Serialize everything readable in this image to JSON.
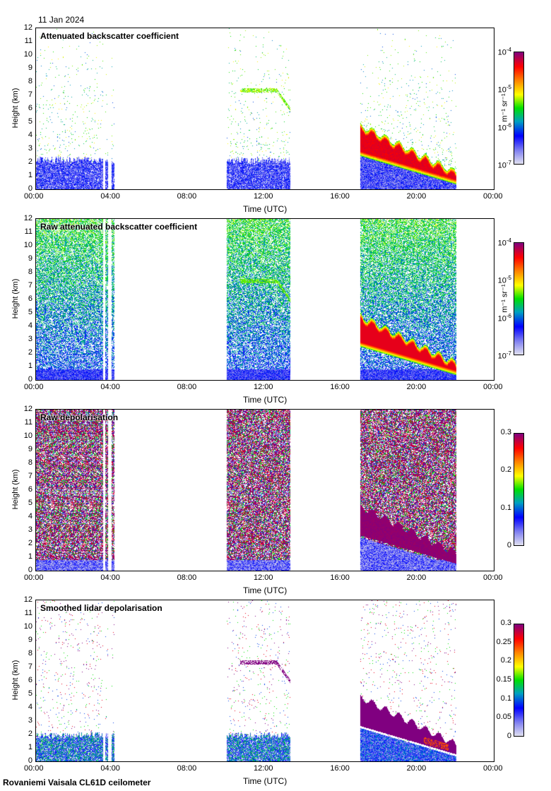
{
  "header": {
    "date": "11 Jan 2024"
  },
  "footer": {
    "station": "Rovaniemi Vaisala CL61D ceilometer"
  },
  "colors": {
    "colormap": [
      "#e0e0f0",
      "#8080f0",
      "#0000ff",
      "#00a0c0",
      "#00e000",
      "#ffff00",
      "#ff8000",
      "#ff0000",
      "#800080"
    ]
  },
  "chart_data": [
    {
      "type": "heatmap",
      "title": "Attenuated backscatter coefficient",
      "mode": "att",
      "xlabel": "Time (UTC)",
      "ylabel": "Height (km)",
      "xlim": [
        0,
        24
      ],
      "ylim": [
        0,
        12
      ],
      "xticks": [
        "00:00",
        "04:00",
        "08:00",
        "12:00",
        "16:00",
        "20:00",
        "00:00"
      ],
      "yticks": [
        "0",
        "1",
        "2",
        "3",
        "4",
        "5",
        "6",
        "7",
        "8",
        "9",
        "10",
        "11",
        "12"
      ],
      "colorbar": {
        "scale": "log",
        "range": [
          1e-07,
          0.0001
        ],
        "ticks": [
          {
            "base": "10",
            "exp": "-4"
          },
          {
            "base": "10",
            "exp": "-5"
          },
          {
            "base": "10",
            "exp": "-6"
          },
          {
            "base": "10",
            "exp": "-7"
          }
        ],
        "unit": "m⁻¹ sr⁻¹"
      },
      "data_segments_hours": [
        [
          0,
          3.5
        ],
        [
          3.6,
          3.75
        ],
        [
          3.95,
          4.1
        ],
        [
          10.0,
          13.3
        ],
        [
          17.0,
          22.0
        ]
      ],
      "features": {
        "boundary_layer_top_km": 2.2,
        "cloud_layer": {
          "time_hours": [
            10.7,
            13.3
          ],
          "height_km": [
            7.4,
            6.0
          ]
        },
        "descending_layer": {
          "time_hours": [
            17,
            22
          ],
          "top_km": [
            4.8,
            1.3
          ],
          "base_km": [
            2.5,
            0.4
          ]
        }
      }
    },
    {
      "type": "heatmap",
      "title": "Raw attenuated backscatter coefficient",
      "mode": "raw",
      "xlabel": "Time (UTC)",
      "ylabel": "Height (km)",
      "xlim": [
        0,
        24
      ],
      "ylim": [
        0,
        12
      ],
      "xticks": [
        "00:00",
        "04:00",
        "08:00",
        "12:00",
        "16:00",
        "20:00",
        "00:00"
      ],
      "yticks": [
        "0",
        "1",
        "2",
        "3",
        "4",
        "5",
        "6",
        "7",
        "8",
        "9",
        "10",
        "11",
        "12"
      ],
      "colorbar": {
        "scale": "log",
        "range": [
          1e-07,
          0.0001
        ],
        "ticks": [
          {
            "base": "10",
            "exp": "-4"
          },
          {
            "base": "10",
            "exp": "-5"
          },
          {
            "base": "10",
            "exp": "-6"
          },
          {
            "base": "10",
            "exp": "-7"
          }
        ],
        "unit": "m⁻¹ sr⁻¹"
      },
      "data_segments_hours": [
        [
          0,
          3.5
        ],
        [
          3.6,
          3.75
        ],
        [
          3.95,
          4.1
        ],
        [
          10.0,
          13.3
        ],
        [
          17.0,
          22.0
        ]
      ],
      "features": {
        "boundary_layer_top_km": 2.2,
        "cloud_layer": {
          "time_hours": [
            10.7,
            13.3
          ],
          "height_km": [
            7.4,
            6.0
          ]
        },
        "descending_layer": {
          "time_hours": [
            17,
            22
          ],
          "top_km": [
            4.8,
            1.3
          ],
          "base_km": [
            2.5,
            0.4
          ]
        }
      }
    },
    {
      "type": "heatmap",
      "title": "Raw depolarisation",
      "mode": "rawdep",
      "xlabel": "Time (UTC)",
      "ylabel": "Height (km)",
      "xlim": [
        0,
        24
      ],
      "ylim": [
        0,
        12
      ],
      "xticks": [
        "00:00",
        "04:00",
        "08:00",
        "12:00",
        "16:00",
        "20:00",
        "00:00"
      ],
      "yticks": [
        "0",
        "1",
        "2",
        "3",
        "4",
        "5",
        "6",
        "7",
        "8",
        "9",
        "10",
        "11",
        "12"
      ],
      "colorbar": {
        "scale": "linear",
        "range": [
          0,
          0.3
        ],
        "ticks": [
          {
            "base": "0.3"
          },
          {
            "base": "0.2"
          },
          {
            "base": "0.1"
          },
          {
            "base": "0"
          }
        ],
        "unit": ""
      },
      "data_segments_hours": [
        [
          0,
          3.5
        ],
        [
          3.6,
          3.75
        ],
        [
          3.95,
          4.1
        ],
        [
          10.0,
          13.3
        ],
        [
          17.0,
          22.0
        ]
      ],
      "features": {
        "boundary_layer_top_km": 1.0,
        "cloud_layer": {
          "time_hours": [
            10.7,
            13.3
          ],
          "height_km": [
            7.4,
            6.0
          ]
        },
        "descending_layer": {
          "time_hours": [
            17,
            22
          ],
          "top_km": [
            4.8,
            1.3
          ],
          "base_km": [
            2.5,
            0.4
          ]
        }
      }
    },
    {
      "type": "heatmap",
      "title": "Smoothed lidar depolarisation",
      "mode": "smdep",
      "xlabel": "Time (UTC)",
      "ylabel": "Height (km)",
      "xlim": [
        0,
        24
      ],
      "ylim": [
        0,
        12
      ],
      "xticks": [
        "00:00",
        "04:00",
        "08:00",
        "12:00",
        "16:00",
        "20:00",
        "00:00"
      ],
      "yticks": [
        "0",
        "1",
        "2",
        "3",
        "4",
        "5",
        "6",
        "7",
        "8",
        "9",
        "10",
        "11",
        "12"
      ],
      "colorbar": {
        "scale": "linear",
        "range": [
          0,
          0.3
        ],
        "ticks": [
          {
            "base": "0.3"
          },
          {
            "base": "0.25"
          },
          {
            "base": "0.2"
          },
          {
            "base": "0.15"
          },
          {
            "base": "0.1"
          },
          {
            "base": "0.05"
          },
          {
            "base": "0"
          }
        ],
        "unit": ""
      },
      "data_segments_hours": [
        [
          0,
          3.5
        ],
        [
          3.6,
          3.75
        ],
        [
          3.95,
          4.1
        ],
        [
          10.0,
          13.3
        ],
        [
          17.0,
          22.0
        ]
      ],
      "features": {
        "boundary_layer_top_km": 2.2,
        "cloud_layer": {
          "time_hours": [
            10.7,
            13.3
          ],
          "height_km": [
            7.4,
            6.0
          ]
        },
        "descending_layer": {
          "time_hours": [
            17,
            22
          ],
          "top_km": [
            4.8,
            1.3
          ],
          "base_km": [
            2.5,
            0.4
          ]
        }
      }
    }
  ]
}
